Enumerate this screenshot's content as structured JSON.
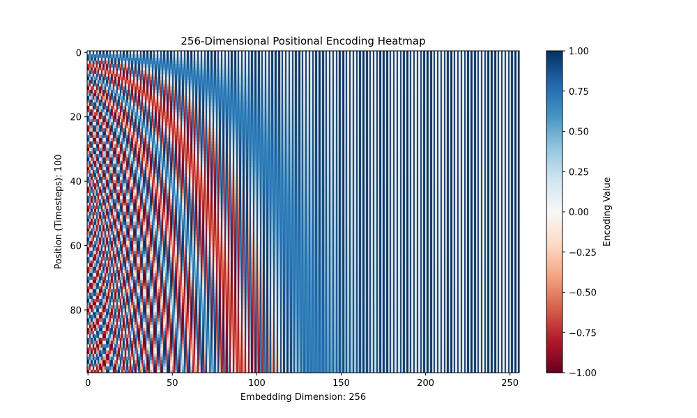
{
  "chart_data": {
    "type": "heatmap",
    "title": "256-Dimensional Positional Encoding Heatmap",
    "xlabel": "Embedding Dimension: 256",
    "ylabel": "Position (Timesteps): 100",
    "rows": 100,
    "cols": 256,
    "x_ticks": [
      "0",
      "50",
      "100",
      "150",
      "200",
      "250"
    ],
    "y_ticks": [
      "0",
      "20",
      "40",
      "60",
      "80"
    ],
    "colorbar": {
      "label": "Encoding Value",
      "range": [
        -1.0,
        1.0
      ],
      "ticks": [
        "1.00",
        "0.75",
        "0.50",
        "0.25",
        "0.00",
        "−0.25",
        "−0.50",
        "−0.75",
        "−1.00"
      ],
      "colormap": "RdBu",
      "colors": {
        "low": "#67001f",
        "mid": "#f7f7f7",
        "high": "#053061"
      }
    }
  }
}
